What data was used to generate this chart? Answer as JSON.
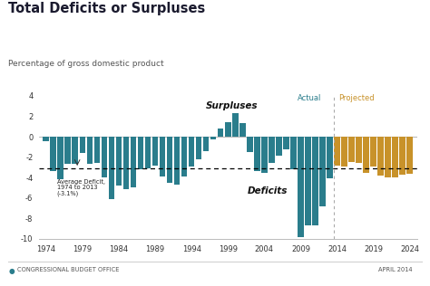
{
  "title": "Total Deficits or Surpluses",
  "subtitle": "Percentage of gross domestic product",
  "actual_color": "#2a7d8c",
  "projected_color": "#c8922a",
  "avg_deficit": -3.1,
  "avg_label_lines": [
    "Average Deficit,",
    "1974 to 2013",
    "(-3.1%)"
  ],
  "surpluses_label": "Surpluses",
  "deficits_label": "Deficits",
  "actual_label": "Actual",
  "projected_label": "Projected",
  "footer_left": "CONGRESSIONAL BUDGET OFFICE",
  "footer_right": "APRIL 2014",
  "background_color": "#ffffff",
  "years": [
    1974,
    1975,
    1976,
    1977,
    1978,
    1979,
    1980,
    1981,
    1982,
    1983,
    1984,
    1985,
    1986,
    1987,
    1988,
    1989,
    1990,
    1991,
    1992,
    1993,
    1994,
    1995,
    1996,
    1997,
    1998,
    1999,
    2000,
    2001,
    2002,
    2003,
    2004,
    2005,
    2006,
    2007,
    2008,
    2009,
    2010,
    2011,
    2012,
    2013,
    2014,
    2015,
    2016,
    2017,
    2018,
    2019,
    2020,
    2021,
    2022,
    2023,
    2024
  ],
  "values": [
    -0.4,
    -3.4,
    -4.2,
    -2.7,
    -2.7,
    -1.6,
    -2.7,
    -2.6,
    -4.0,
    -6.1,
    -4.8,
    -5.1,
    -5.0,
    -3.2,
    -3.1,
    -2.8,
    -3.9,
    -4.5,
    -4.7,
    -3.9,
    -2.9,
    -2.2,
    -1.4,
    -0.3,
    0.8,
    1.4,
    2.3,
    1.3,
    -1.5,
    -3.4,
    -3.5,
    -2.6,
    -1.9,
    -1.2,
    -3.2,
    -9.8,
    -8.7,
    -8.7,
    -6.8,
    -4.1,
    -2.8,
    -2.9,
    -2.5,
    -2.6,
    -3.5,
    -2.9,
    -3.8,
    -4.0,
    -4.0,
    -3.7,
    -3.6
  ],
  "projection_start_year": 2014,
  "ylim": [
    -10,
    4
  ],
  "yticks": [
    -10,
    -8,
    -6,
    -4,
    -2,
    0,
    2,
    4
  ],
  "xticks": [
    1974,
    1979,
    1984,
    1989,
    1994,
    1999,
    2004,
    2009,
    2014,
    2019,
    2024
  ]
}
